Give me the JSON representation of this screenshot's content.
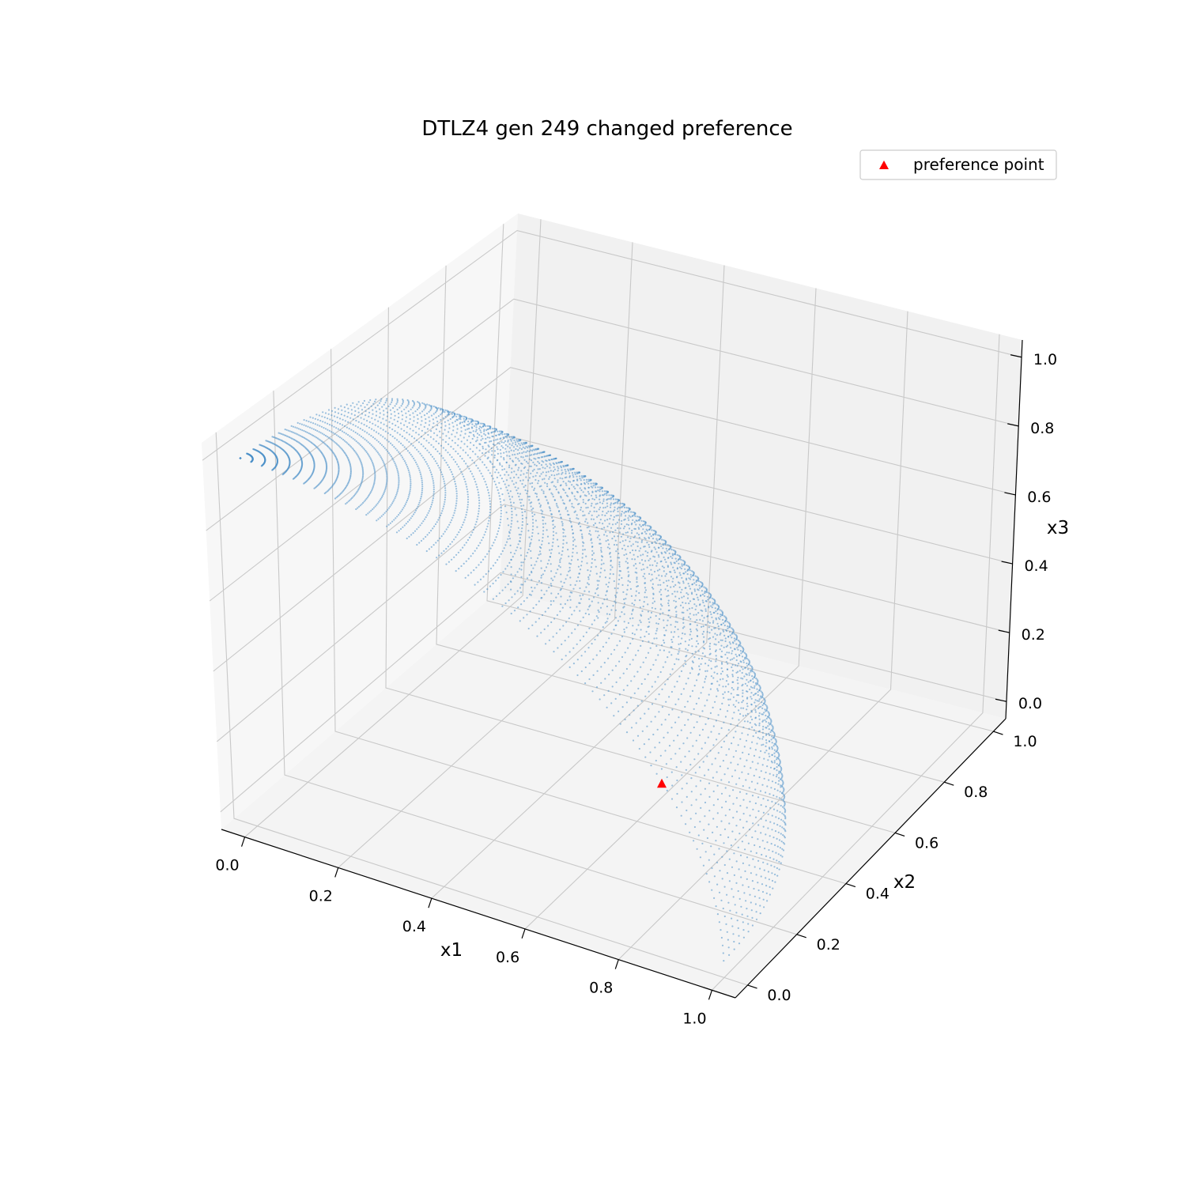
{
  "chart_data": {
    "type": "scatter",
    "projection": "3d",
    "title": "DTLZ4 gen 249 changed preference",
    "xlabel": "x1",
    "ylabel": "x2",
    "zlabel": "x3",
    "xlim": [
      -0.05,
      1.05
    ],
    "ylim": [
      -0.05,
      1.05
    ],
    "zlim": [
      -0.05,
      1.05
    ],
    "xticks": [
      "0.0",
      "0.2",
      "0.4",
      "0.6",
      "0.8",
      "1.0"
    ],
    "yticks": [
      "0.0",
      "0.2",
      "0.4",
      "0.6",
      "0.8",
      "1.0"
    ],
    "zticks": [
      "0.0",
      "0.2",
      "0.4",
      "0.6",
      "0.8",
      "1.0"
    ],
    "grid": true,
    "legend_position": "top-right",
    "series": [
      {
        "kind": "surface_points",
        "description_shape": "points on unit sphere octant x1^2 + x2^2 + x3^2 = 1, x1 >= 0, x2 >= 0, x3 >= 0",
        "color": "#4a90c8"
      },
      {
        "name": "preference point",
        "marker": "triangle",
        "color": "#ff0000",
        "points": [
          {
            "x": 0.88,
            "y": 0.0,
            "z": 0.47
          }
        ]
      }
    ]
  }
}
